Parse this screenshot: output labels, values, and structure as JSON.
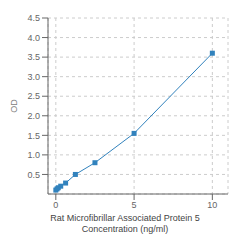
{
  "chart_data": {
    "type": "line",
    "xlabel": "Rat Microfibrillar Associated Protein 5\nConcentration (ng/ml)",
    "ylabel": "OD",
    "x": [
      0,
      0.078,
      0.156,
      0.313,
      0.625,
      1.25,
      2.5,
      5,
      10
    ],
    "values": [
      0.1,
      0.13,
      0.16,
      0.2,
      0.28,
      0.5,
      0.8,
      1.55,
      3.6
    ],
    "xlim": [
      -0.5,
      11
    ],
    "ylim": [
      0,
      4.5
    ],
    "xticks": [
      0,
      5,
      10
    ],
    "yticks": [
      0.5,
      {
        "value": 1,
        "label": "1.0"
      },
      1.5,
      {
        "value": 2,
        "label": "2.0"
      },
      2.5,
      {
        "value": 3,
        "label": "3.0"
      },
      3.5,
      {
        "value": 4,
        "label": "4.0"
      },
      4.5
    ],
    "grid": true,
    "marker": "square"
  }
}
